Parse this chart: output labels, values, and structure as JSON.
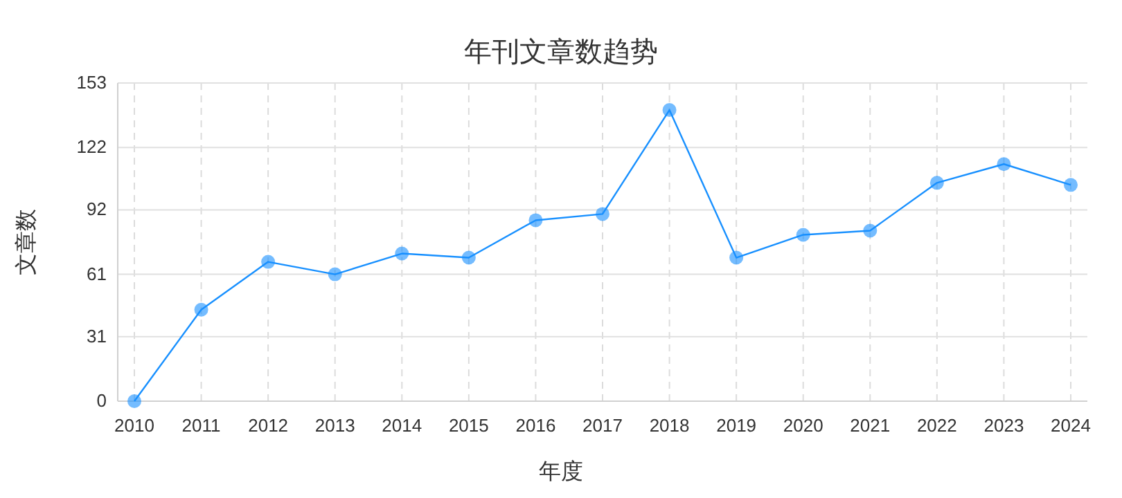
{
  "chart_data": {
    "type": "line",
    "title": "年刊文章数趋势",
    "xlabel": "年度",
    "ylabel": "文章数",
    "categories": [
      "2010",
      "2011",
      "2012",
      "2013",
      "2014",
      "2015",
      "2016",
      "2017",
      "2018",
      "2019",
      "2020",
      "2021",
      "2022",
      "2023",
      "2024"
    ],
    "series": [
      {
        "color": "#1890ff",
        "values": [
          0,
          44,
          67,
          61,
          71,
          69,
          87,
          90,
          140,
          69,
          80,
          82,
          105,
          114,
          104
        ]
      }
    ],
    "ylim": [
      0,
      153
    ],
    "yticks": [
      0,
      31,
      61,
      92,
      122,
      153
    ],
    "grid": true,
    "marker": "circle",
    "line_style": "solid"
  }
}
